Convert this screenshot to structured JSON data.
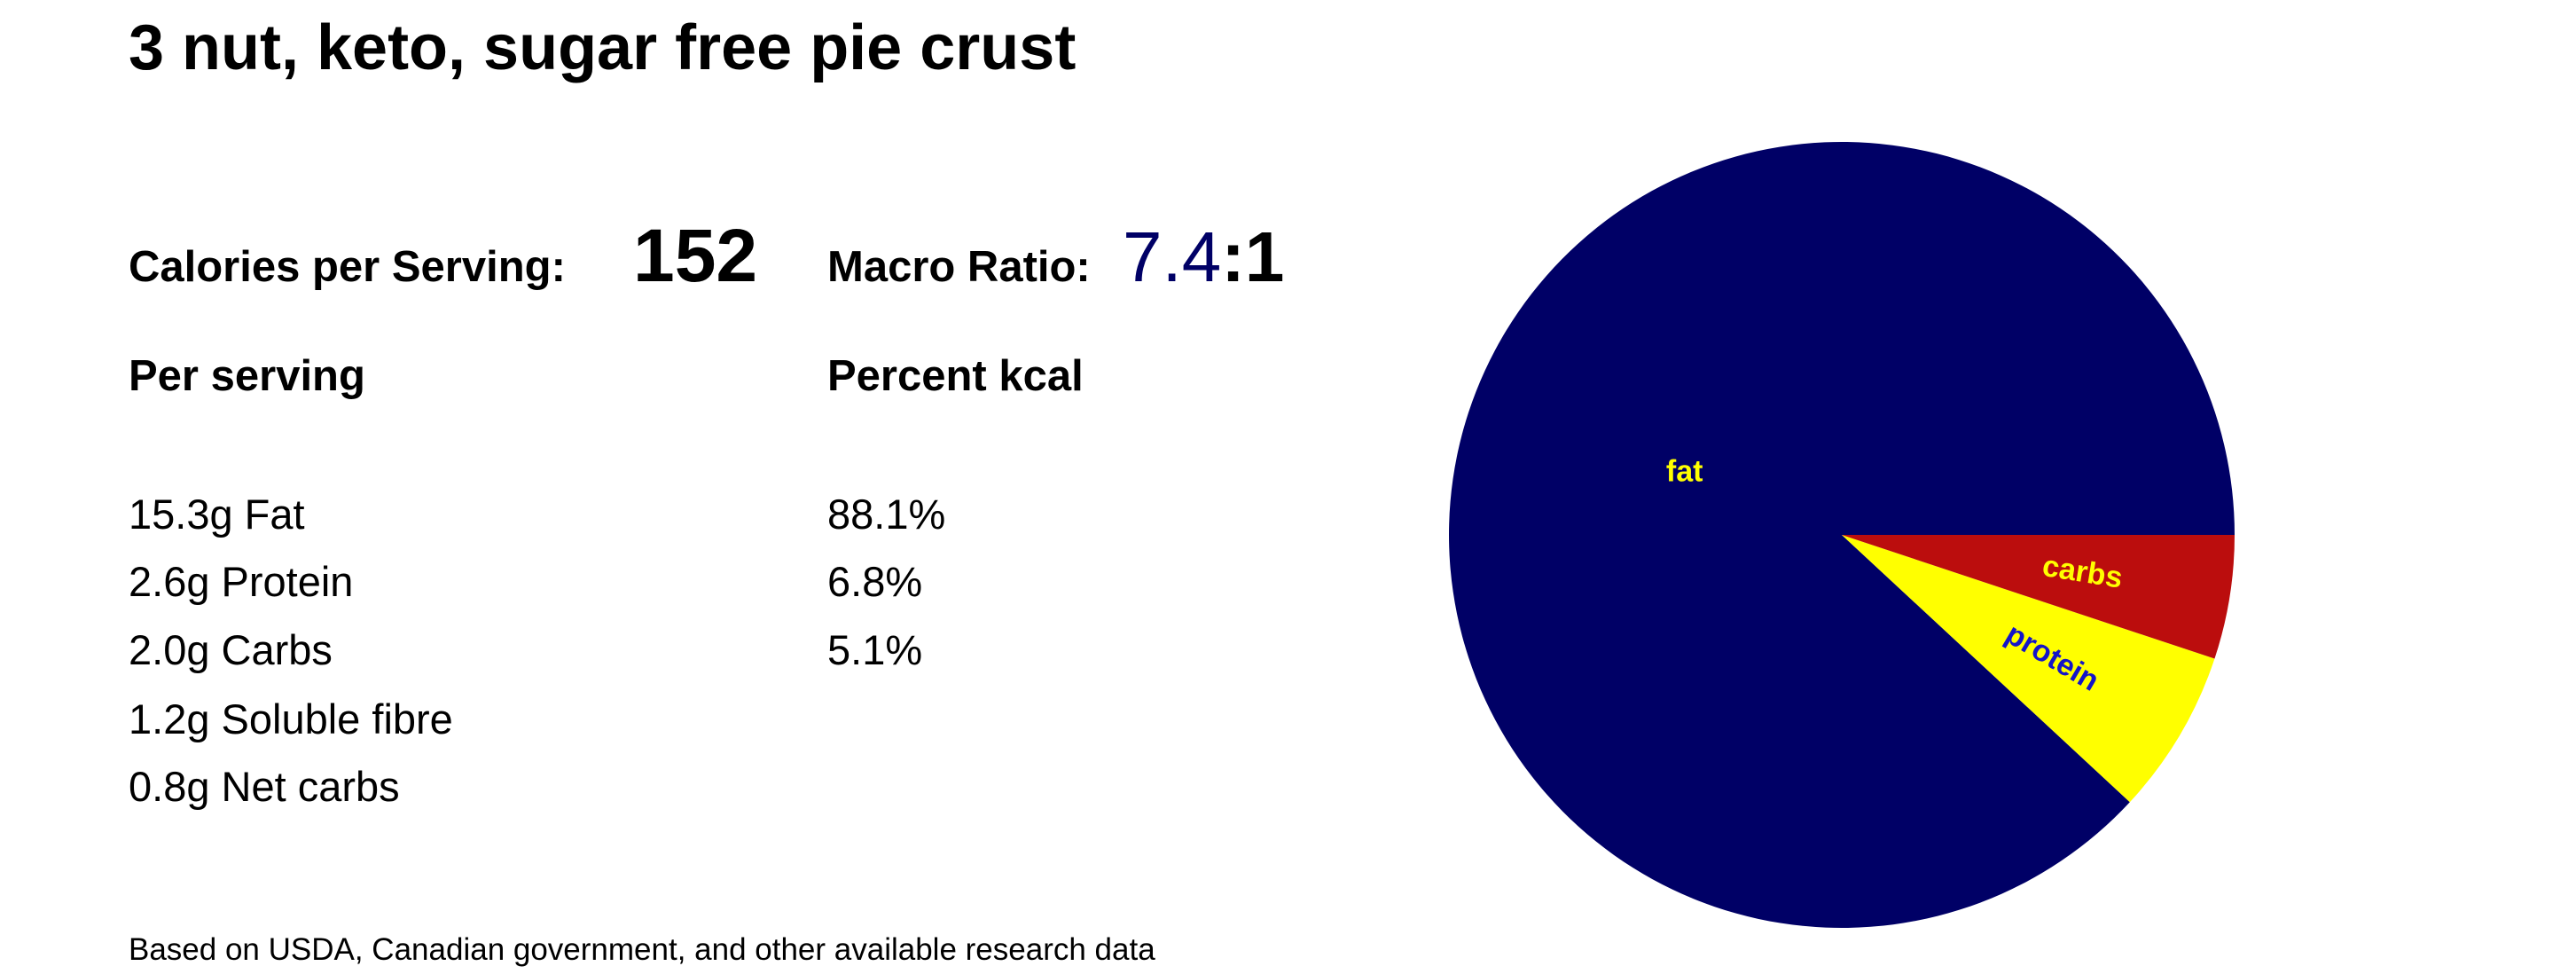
{
  "header": {
    "title": "3 nut, keto, sugar free pie crust"
  },
  "summary": {
    "calories_label": "Calories per Serving:",
    "calories": 152,
    "ratio_label": "Macro Ratio:",
    "ratio": 7.4,
    "ratio_suffix": ":1"
  },
  "columns": {
    "per_serving": "Per serving",
    "percent_kcal": "Percent kcal"
  },
  "per_serving": [
    "15.3g Fat",
    "2.6g Protein",
    "2.0g Carbs",
    "1.2g Soluble fibre",
    "0.8g Net carbs"
  ],
  "percent_kcal": [
    "88.1%",
    "6.8%",
    "5.1%"
  ],
  "footnote": "Based on USDA, Canadian government, and other available research data",
  "chart_data": {
    "type": "pie",
    "categories": [
      "fat",
      "protein",
      "carbs"
    ],
    "values": [
      88.1,
      6.8,
      5.1
    ],
    "colors": [
      "#000066",
      "#ffff00",
      "#bb0d0d"
    ],
    "label_colors": [
      "#ffff00",
      "#1414c8",
      "#ffff00"
    ]
  }
}
